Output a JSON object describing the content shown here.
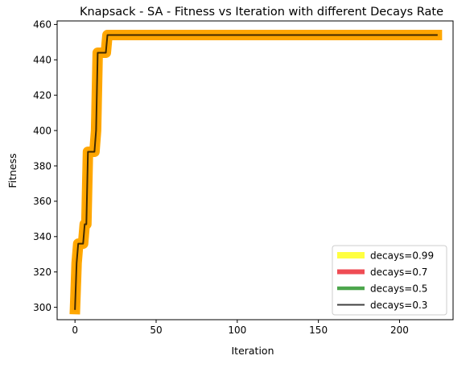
{
  "chart_data": {
    "type": "line",
    "title": "Knapsack - SA - Fitness vs Iteration with different Decays Rate",
    "xlabel": "Iteration",
    "ylabel": "Fitness",
    "xlim": [
      -11,
      233
    ],
    "ylim": [
      293,
      462
    ],
    "xticks": [
      0,
      50,
      100,
      150,
      200
    ],
    "yticks": [
      300,
      320,
      340,
      360,
      380,
      400,
      420,
      440,
      460
    ],
    "grid": false,
    "legend_position": "lower right",
    "series": [
      {
        "name": "decays=0.99",
        "color": "#ffff00",
        "halo_color": "#ffa500",
        "x": [
          0,
          1,
          2,
          3,
          4,
          5,
          6,
          7,
          8,
          9,
          10,
          11,
          12,
          13,
          14,
          15,
          16,
          17,
          18,
          19,
          20,
          21,
          223
        ],
        "y": [
          299,
          325,
          336,
          336,
          336,
          336,
          347,
          347,
          388,
          388,
          388,
          388,
          388,
          400,
          444,
          444,
          444,
          444,
          444,
          444,
          454,
          454,
          454
        ]
      },
      {
        "name": "decays=0.7",
        "color": "#e8000b",
        "halo_color": "#ffa500",
        "x": [
          0,
          1,
          2,
          3,
          4,
          5,
          6,
          7,
          8,
          9,
          10,
          11,
          12,
          13,
          14,
          15,
          16,
          17,
          18,
          19,
          20,
          21,
          223
        ],
        "y": [
          299,
          325,
          336,
          336,
          336,
          336,
          347,
          347,
          388,
          388,
          388,
          388,
          388,
          400,
          444,
          444,
          444,
          444,
          444,
          444,
          454,
          454,
          454
        ]
      },
      {
        "name": "decays=0.5",
        "color": "#008000",
        "halo_color": "#ffa500",
        "x": [
          0,
          1,
          2,
          3,
          4,
          5,
          6,
          7,
          8,
          9,
          10,
          11,
          12,
          13,
          14,
          15,
          16,
          17,
          18,
          19,
          20,
          21,
          223
        ],
        "y": [
          299,
          325,
          336,
          336,
          336,
          336,
          347,
          347,
          388,
          388,
          388,
          388,
          388,
          400,
          444,
          444,
          444,
          444,
          444,
          444,
          454,
          454,
          454
        ]
      },
      {
        "name": "decays=0.3",
        "color": "#000000",
        "halo_color": "#ffa500",
        "x": [
          0,
          1,
          2,
          3,
          4,
          5,
          6,
          7,
          8,
          9,
          10,
          11,
          12,
          13,
          14,
          15,
          16,
          17,
          18,
          19,
          20,
          21,
          223
        ],
        "y": [
          299,
          325,
          336,
          336,
          336,
          336,
          347,
          347,
          388,
          388,
          388,
          388,
          388,
          400,
          444,
          444,
          444,
          444,
          444,
          444,
          454,
          454,
          454
        ]
      }
    ]
  }
}
